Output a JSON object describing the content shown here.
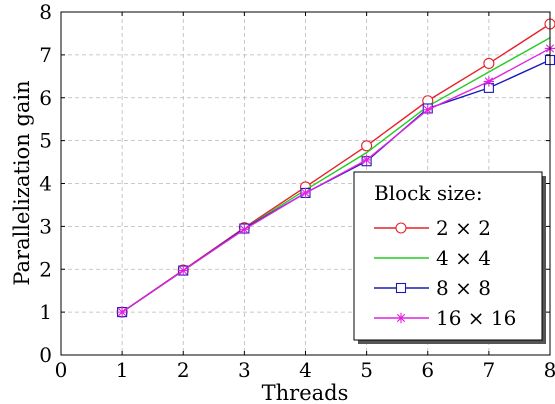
{
  "chart_data": {
    "type": "line",
    "title": "",
    "xlabel": "Threads",
    "ylabel": "Parallelization gain",
    "xlim": [
      0,
      8
    ],
    "ylim": [
      0,
      8
    ],
    "xticks": [
      "0",
      "1",
      "2",
      "3",
      "4",
      "5",
      "6",
      "7",
      "8"
    ],
    "yticks": [
      "0",
      "1",
      "2",
      "3",
      "4",
      "5",
      "6",
      "7",
      "8"
    ],
    "grid": true,
    "legend": {
      "title": "Block size:",
      "placement": "bottom-right"
    },
    "x": [
      1,
      2,
      3,
      4,
      5,
      6,
      7,
      8
    ],
    "series": [
      {
        "name": "2 × 2",
        "color": "#e8212a",
        "marker": "circle",
        "values": [
          1.0,
          1.98,
          2.97,
          3.92,
          4.88,
          5.93,
          6.8,
          7.72
        ]
      },
      {
        "name": "4 × 4",
        "color": "#22cc22",
        "marker": "none",
        "values": [
          1.0,
          1.97,
          2.95,
          3.85,
          4.72,
          5.8,
          6.6,
          7.4
        ]
      },
      {
        "name": "8 × 8",
        "color": "#1a1ab8",
        "marker": "square",
        "values": [
          1.0,
          1.97,
          2.95,
          3.78,
          4.52,
          5.75,
          6.23,
          6.88
        ]
      },
      {
        "name": "16 × 16",
        "color": "#e022e0",
        "marker": "star",
        "values": [
          1.0,
          1.97,
          2.93,
          3.78,
          4.55,
          5.72,
          6.38,
          7.15
        ]
      }
    ]
  }
}
